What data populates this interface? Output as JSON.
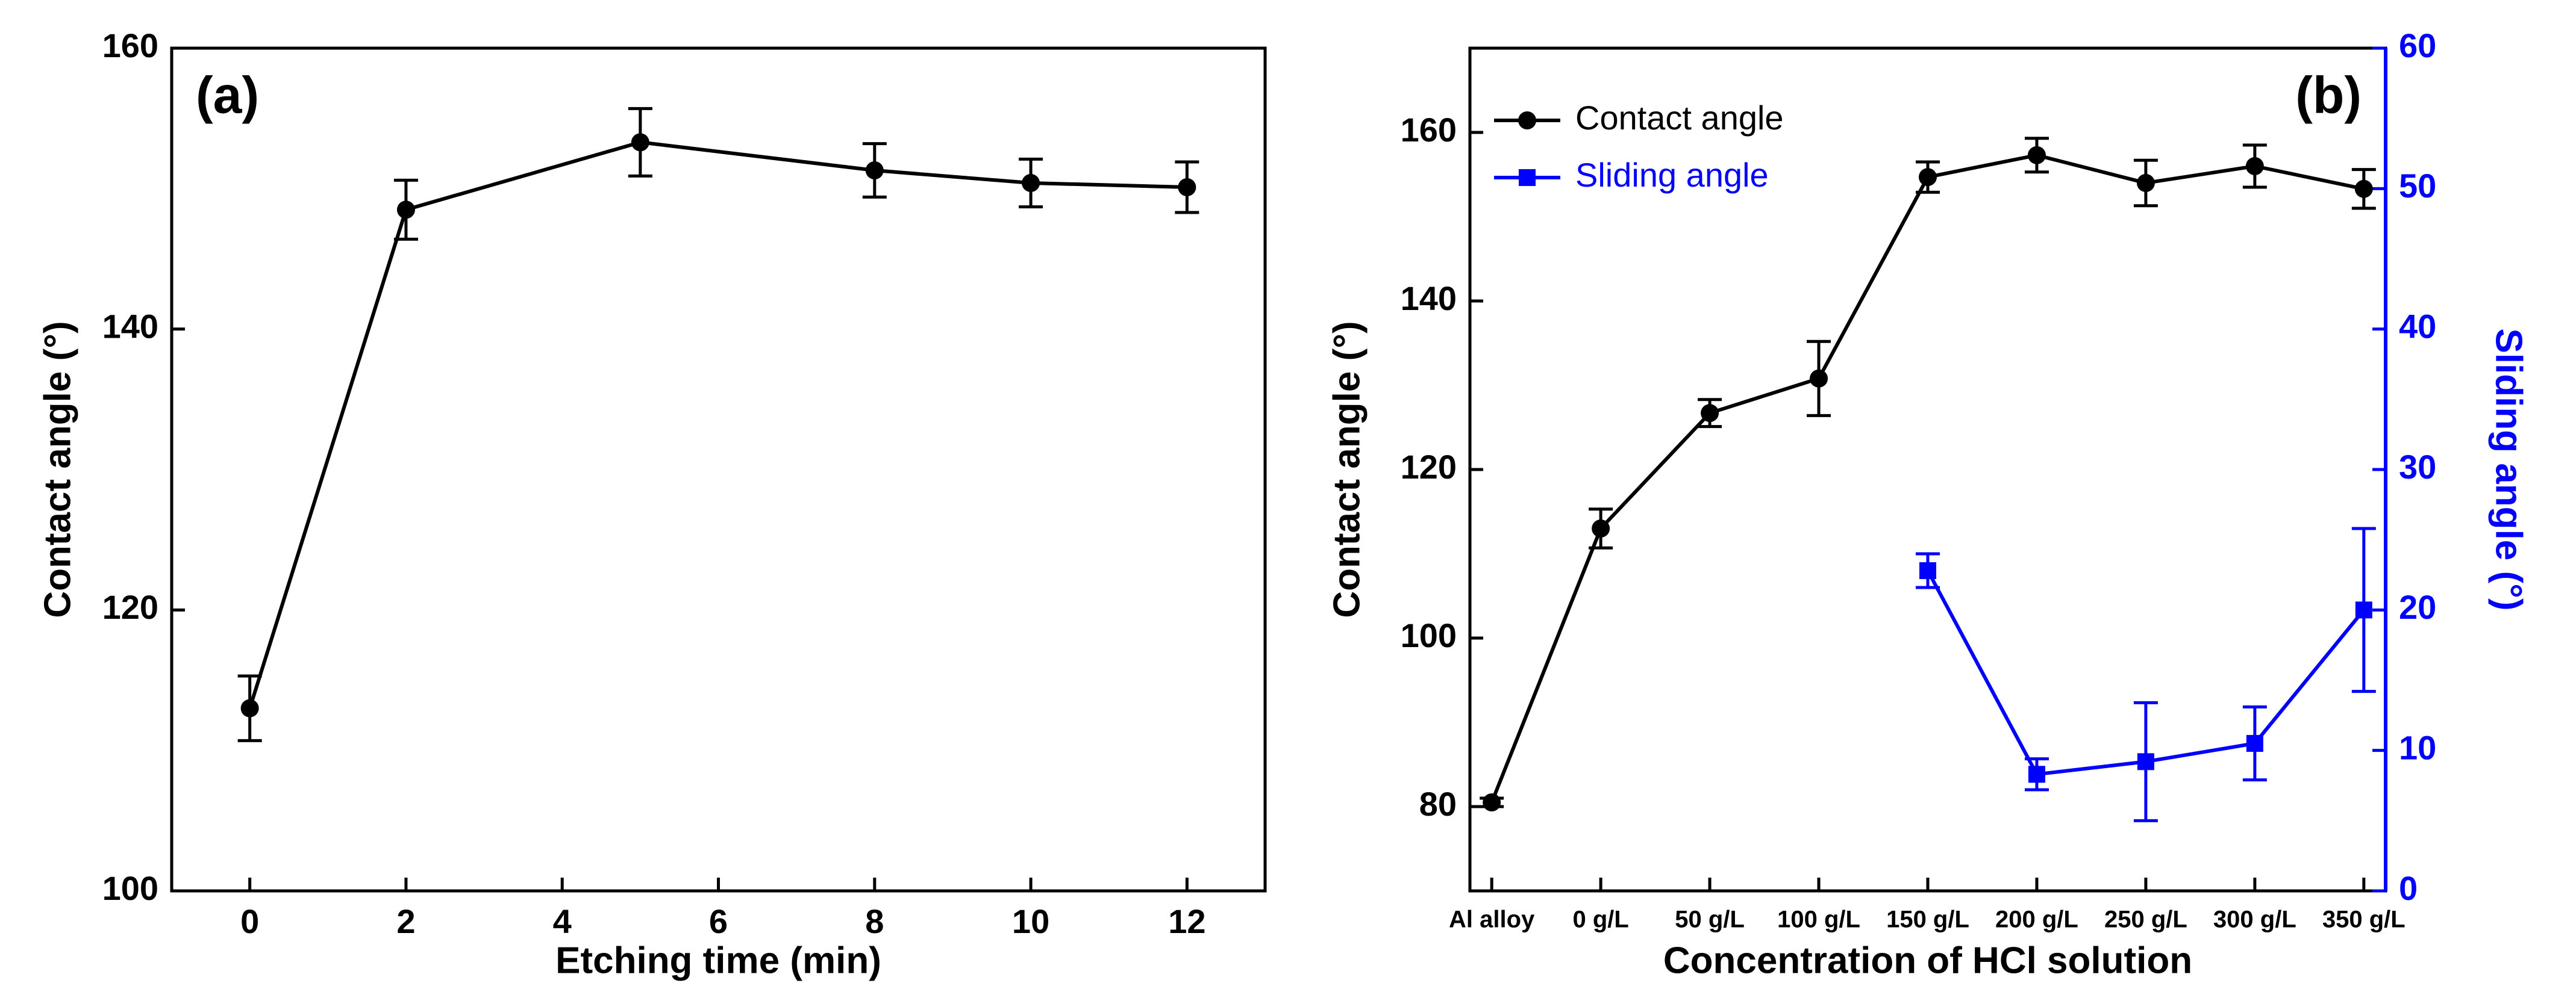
{
  "chart_data": [
    {
      "type": "line",
      "annotation": "(a)",
      "xlabel": "Etching time (min)",
      "ylabel": "Contact angle (°)",
      "x": [
        0,
        2,
        5,
        8,
        10,
        12
      ],
      "xlim": [
        -1,
        13
      ],
      "xticks": [
        0,
        2,
        4,
        6,
        8,
        10,
        12
      ],
      "ylim": [
        100,
        160
      ],
      "yticks": [
        100,
        120,
        140,
        160
      ],
      "series": [
        {
          "color": "#000000",
          "marker": "circle",
          "values": [
            113,
            148.5,
            153.3,
            151.3,
            150.4,
            150.1
          ],
          "errors": [
            2.3,
            2.1,
            2.4,
            1.9,
            1.7,
            1.8
          ]
        }
      ]
    },
    {
      "type": "line",
      "annotation": "(b)",
      "xlabel": "Concentration of HCl solution",
      "ylabel": "Contact angle (°)",
      "y2label": "Sliding angle (°)",
      "categories": [
        "Al alloy",
        "0 g/L",
        "50 g/L",
        "100 g/L",
        "150 g/L",
        "200 g/L",
        "250 g/L",
        "300 g/L",
        "350 g/L"
      ],
      "ylim": [
        70,
        170
      ],
      "yticks": [
        80,
        100,
        120,
        140,
        160
      ],
      "y2lim": [
        0,
        60
      ],
      "y2ticks": [
        0,
        10,
        20,
        30,
        40,
        50,
        60
      ],
      "legend": "upper left",
      "series": [
        {
          "name": "Contact angle",
          "color": "#000000",
          "marker": "circle",
          "values": [
            80.5,
            113,
            126.7,
            130.8,
            154.7,
            157.3,
            154,
            156,
            153.3
          ],
          "errors": [
            0.5,
            2.3,
            1.6,
            4.4,
            1.8,
            2,
            2.7,
            2.5,
            2.3
          ]
        },
        {
          "name": "Sliding angle",
          "color": "#0000ff",
          "marker": "square",
          "axis": "y2",
          "values": [
            null,
            null,
            null,
            null,
            22.8,
            8.3,
            9.2,
            10.5,
            20
          ],
          "errors": [
            null,
            null,
            null,
            null,
            1.2,
            1.1,
            4.2,
            2.6,
            5.8
          ]
        }
      ]
    }
  ]
}
